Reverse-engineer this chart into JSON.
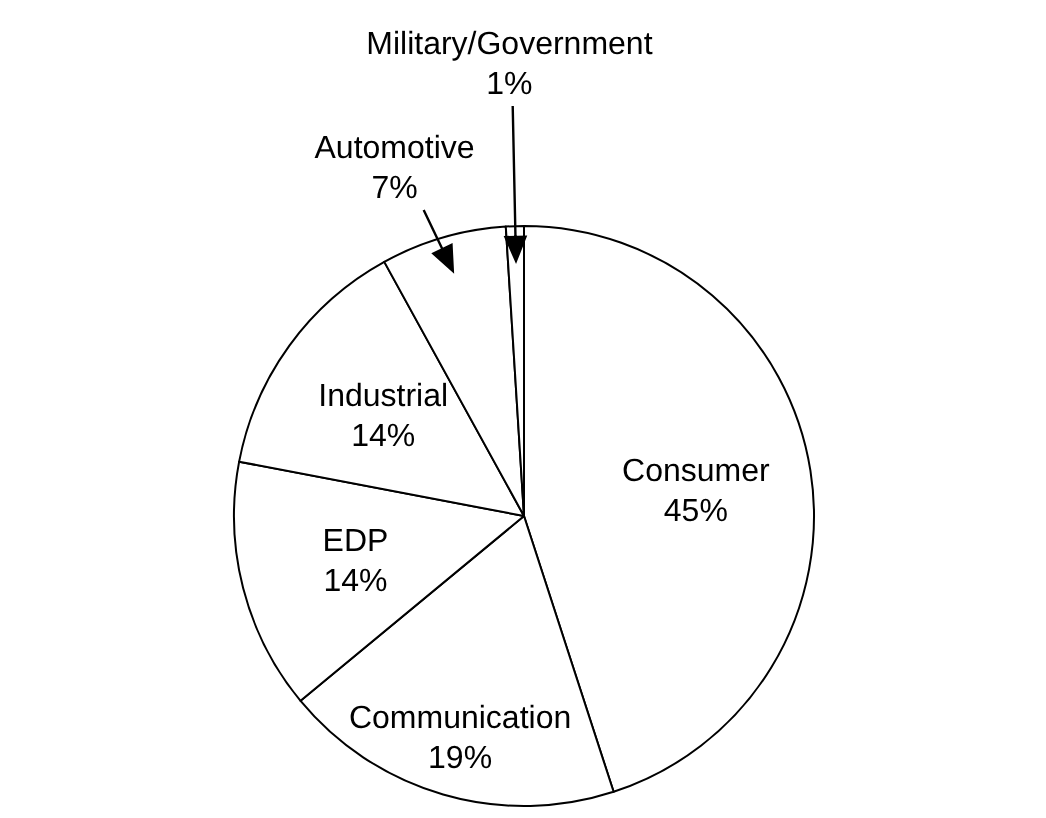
{
  "chart_data": {
    "type": "pie",
    "categories": [
      "Consumer",
      "Communication",
      "EDP",
      "Industrial",
      "Automotive",
      "Military/Government"
    ],
    "values": [
      45,
      19,
      14,
      14,
      7,
      1
    ],
    "colors": [
      "#ffffff",
      "#ffffff",
      "#ffffff",
      "#ffffff",
      "#ffffff",
      "#ffffff"
    ],
    "value_labels": [
      "45%",
      "19%",
      "14%",
      "14%",
      "7%",
      "1%"
    ]
  }
}
